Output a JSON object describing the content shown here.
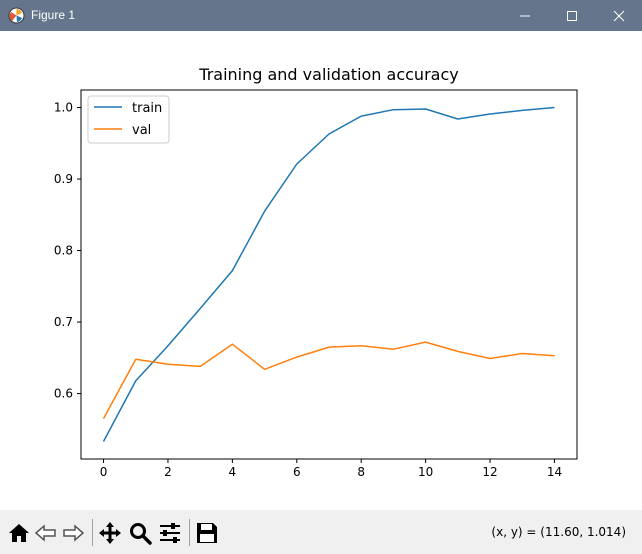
{
  "window": {
    "title": "Figure 1"
  },
  "colors": {
    "titlebar": "#65768c",
    "train": "#1f77b4",
    "val": "#ff7f0e",
    "toolbar": "#f0f0f0"
  },
  "toolbar": {
    "buttons": [
      "home-icon",
      "back-icon",
      "forward-icon",
      "pan-icon",
      "zoom-icon",
      "configure-subplots-icon",
      "save-icon"
    ],
    "coords_text": "(x, y) = (11.60, 1.014)"
  },
  "chart_data": {
    "type": "line",
    "title": "Training and validation accuracy",
    "xlabel": "",
    "ylabel": "",
    "x": [
      0,
      1,
      2,
      3,
      4,
      5,
      6,
      7,
      8,
      9,
      10,
      11,
      12,
      13,
      14
    ],
    "xlim": [
      -0.7,
      14.7
    ],
    "ylim": [
      0.5085,
      1.0245
    ],
    "xticks": [
      0,
      2,
      4,
      6,
      8,
      10,
      12,
      14
    ],
    "yticks": [
      0.6,
      0.7,
      0.8,
      0.9,
      1.0
    ],
    "xtick_labels": [
      "0",
      "2",
      "4",
      "6",
      "8",
      "10",
      "12",
      "14"
    ],
    "ytick_labels": [
      "0.6",
      "0.7",
      "0.8",
      "0.9",
      "1.0"
    ],
    "legend_position": "upper left",
    "grid": false,
    "series": [
      {
        "name": "train",
        "color": "#1f77b4",
        "values": [
          0.533,
          0.618,
          0.667,
          0.719,
          0.772,
          0.855,
          0.921,
          0.963,
          0.988,
          0.997,
          0.998,
          0.984,
          0.991,
          0.996,
          1.0
        ]
      },
      {
        "name": "val",
        "color": "#ff7f0e",
        "values": [
          0.565,
          0.648,
          0.641,
          0.638,
          0.669,
          0.634,
          0.651,
          0.665,
          0.667,
          0.662,
          0.672,
          0.659,
          0.649,
          0.656,
          0.653
        ]
      }
    ]
  }
}
